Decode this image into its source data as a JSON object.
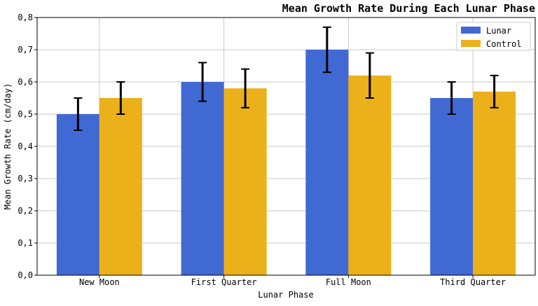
{
  "chart_data": {
    "type": "bar",
    "title": "Mean Growth Rate During Each Lunar Phase",
    "xlabel": "Lunar Phase",
    "ylabel": "Mean Growth Rate (cm/day)",
    "categories": [
      "New Moon",
      "First Quarter",
      "Full Moon",
      "Third Quarter"
    ],
    "series": [
      {
        "name": "Lunar",
        "values": [
          0.5,
          0.6,
          0.7,
          0.55
        ],
        "errors": [
          0.05,
          0.06,
          0.07,
          0.05
        ],
        "color": "#4169d4"
      },
      {
        "name": "Control",
        "values": [
          0.55,
          0.58,
          0.62,
          0.57
        ],
        "errors": [
          0.05,
          0.06,
          0.07,
          0.05
        ],
        "color": "#ecb01a"
      }
    ],
    "ylim": [
      0,
      0.8
    ],
    "yticks": [
      0.0,
      0.1,
      0.2,
      0.3,
      0.4,
      0.5,
      0.6,
      0.7,
      0.8
    ],
    "yticklabels": [
      "0,0",
      "0,1",
      "0,2",
      "0,3",
      "0,4",
      "0,5",
      "0,6",
      "0,7",
      "0,8"
    ],
    "grid": true,
    "legend_position": "top-right"
  }
}
